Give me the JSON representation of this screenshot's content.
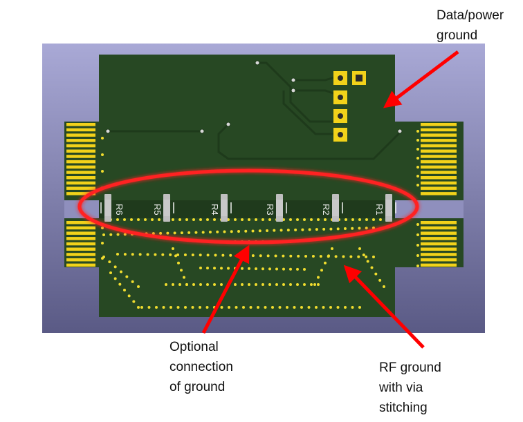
{
  "annotations": {
    "data_power_ground": [
      "Data/power",
      "ground"
    ],
    "optional_connection": [
      "Optional",
      "connection",
      "of ground"
    ],
    "rf_ground": [
      "RF ground",
      "with via",
      "stitching"
    ]
  },
  "resistors": [
    "R6",
    "R5",
    "R4",
    "R3",
    "R2",
    "R1"
  ],
  "colors": {
    "board": "#284a24",
    "copper_trace": "#1f3a1c",
    "gold_pad": "#f2d21a",
    "via": "#f0dc2e",
    "annotation_arrow": "#ff0000",
    "background_top": "#a7a7d4",
    "background_bottom": "#5e5e89",
    "silkscreen": "#f2f2f2"
  }
}
